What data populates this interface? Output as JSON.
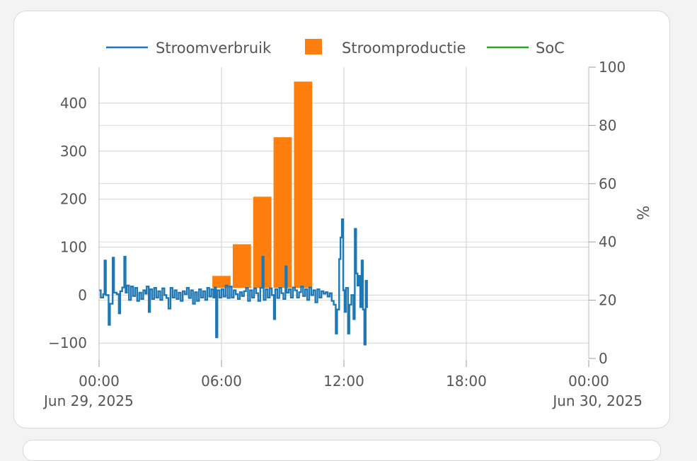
{
  "legend": [
    {
      "name": "Stroomverbruik",
      "color": "#1f77b4",
      "kind": "line"
    },
    {
      "name": "Stroomproductie",
      "color": "#ff7f0e",
      "kind": "bar"
    },
    {
      "name": "SoC",
      "color": "#2ca02c",
      "kind": "line"
    }
  ],
  "chart_data": {
    "type": "bar",
    "x_axis": {
      "range": [
        "2025-06-29 00:00",
        "2025-06-30 00:00"
      ],
      "ticks": [
        {
          "t": 0,
          "label": "00:00",
          "sub": "Jun 29, 2025"
        },
        {
          "t": 6,
          "label": "06:00",
          "sub": ""
        },
        {
          "t": 12,
          "label": "12:00",
          "sub": ""
        },
        {
          "t": 18,
          "label": "18:00",
          "sub": ""
        },
        {
          "t": 24,
          "label": "00:00",
          "sub": "Jun 30, 2025"
        }
      ]
    },
    "y_left": {
      "range": [
        -135,
        475
      ],
      "ticks": [
        {
          "v": -100,
          "label": "−100"
        },
        {
          "v": 0,
          "label": "0"
        },
        {
          "v": 100,
          "label": "100"
        },
        {
          "v": 200,
          "label": "200"
        },
        {
          "v": 300,
          "label": "300"
        },
        {
          "v": 400,
          "label": "400"
        }
      ]
    },
    "y_right": {
      "label": "%",
      "range": [
        0,
        100
      ],
      "ticks": [
        {
          "v": 0,
          "label": "0"
        },
        {
          "v": 20,
          "label": "20"
        },
        {
          "v": 40,
          "label": "40"
        },
        {
          "v": 60,
          "label": "60"
        },
        {
          "v": 80,
          "label": "80"
        },
        {
          "v": 100,
          "label": "100"
        }
      ]
    },
    "grid": true,
    "legend_position": "top",
    "series": [
      {
        "name": "Stroomproductie",
        "type": "bar",
        "points": [
          {
            "start": "2025-06-29 05:30",
            "end": "2025-06-29 06:30",
            "value": 40
          },
          {
            "start": "2025-06-29 06:30",
            "end": "2025-06-29 07:30",
            "value": 106
          },
          {
            "start": "2025-06-29 07:30",
            "end": "2025-06-29 08:30",
            "value": 205
          },
          {
            "start": "2025-06-29 08:30",
            "end": "2025-06-29 09:30",
            "value": 329
          },
          {
            "start": "2025-06-29 09:30",
            "end": "2025-06-29 10:30",
            "value": 445
          }
        ]
      },
      {
        "name": "Stroomverbruik",
        "type": "line",
        "step": true,
        "points": [
          [
            "00:00",
            10
          ],
          [
            "00:05",
            -5
          ],
          [
            "00:12",
            2
          ],
          [
            "00:16",
            72
          ],
          [
            "00:20",
            0
          ],
          [
            "00:28",
            -62
          ],
          [
            "00:32",
            -18
          ],
          [
            "00:40",
            78
          ],
          [
            "00:44",
            5
          ],
          [
            "00:52",
            2
          ],
          [
            "00:58",
            -38
          ],
          [
            "01:02",
            8
          ],
          [
            "01:08",
            16
          ],
          [
            "01:14",
            80
          ],
          [
            "01:18",
            5
          ],
          [
            "01:22",
            20
          ],
          [
            "01:28",
            -10
          ],
          [
            "01:34",
            18
          ],
          [
            "01:40",
            -2
          ],
          [
            "01:46",
            15
          ],
          [
            "01:52",
            -12
          ],
          [
            "01:58",
            5
          ],
          [
            "02:04",
            -8
          ],
          [
            "02:10",
            10
          ],
          [
            "02:16",
            3
          ],
          [
            "02:20",
            18
          ],
          [
            "02:26",
            -35
          ],
          [
            "02:30",
            12
          ],
          [
            "02:36",
            -8
          ],
          [
            "02:42",
            15
          ],
          [
            "02:48",
            -5
          ],
          [
            "02:54",
            8
          ],
          [
            "03:00",
            -10
          ],
          [
            "03:06",
            14
          ],
          [
            "03:12",
            0
          ],
          [
            "03:18",
            -6
          ],
          [
            "03:24",
            -28
          ],
          [
            "03:30",
            15
          ],
          [
            "03:36",
            -5
          ],
          [
            "03:42",
            10
          ],
          [
            "03:48",
            -8
          ],
          [
            "03:54",
            5
          ],
          [
            "04:00",
            -12
          ],
          [
            "04:06",
            8
          ],
          [
            "04:12",
            2
          ],
          [
            "04:18",
            15
          ],
          [
            "04:24",
            -6
          ],
          [
            "04:30",
            10
          ],
          [
            "04:36",
            -18
          ],
          [
            "04:42",
            6
          ],
          [
            "04:48",
            -12
          ],
          [
            "04:54",
            12
          ],
          [
            "05:00",
            -5
          ],
          [
            "05:06",
            8
          ],
          [
            "05:12",
            -10
          ],
          [
            "05:18",
            15
          ],
          [
            "05:24",
            -3
          ],
          [
            "05:30",
            12
          ],
          [
            "05:36",
            -5
          ],
          [
            "05:40",
            16
          ],
          [
            "05:44",
            -88
          ],
          [
            "05:48",
            10
          ],
          [
            "05:54",
            -5
          ],
          [
            "06:00",
            12
          ],
          [
            "06:06",
            -3
          ],
          [
            "06:12",
            20
          ],
          [
            "06:18",
            -6
          ],
          [
            "06:24",
            18
          ],
          [
            "06:30",
            -5
          ],
          [
            "06:36",
            10
          ],
          [
            "06:42",
            2
          ],
          [
            "06:48",
            -8
          ],
          [
            "06:54",
            6
          ],
          [
            "07:00",
            -2
          ],
          [
            "07:06",
            8
          ],
          [
            "07:12",
            15
          ],
          [
            "07:18",
            -12
          ],
          [
            "07:24",
            10
          ],
          [
            "07:30",
            -5
          ],
          [
            "07:36",
            14
          ],
          [
            "07:42",
            4
          ],
          [
            "07:48",
            -12
          ],
          [
            "07:54",
            15
          ],
          [
            "08:00",
            80
          ],
          [
            "08:04",
            -10
          ],
          [
            "08:10",
            12
          ],
          [
            "08:16",
            -5
          ],
          [
            "08:22",
            14
          ],
          [
            "08:28",
            0
          ],
          [
            "08:34",
            -50
          ],
          [
            "08:38",
            12
          ],
          [
            "08:44",
            -6
          ],
          [
            "08:50",
            15
          ],
          [
            "08:56",
            4
          ],
          [
            "09:02",
            -8
          ],
          [
            "09:08",
            60
          ],
          [
            "09:12",
            5
          ],
          [
            "09:18",
            12
          ],
          [
            "09:24",
            -5
          ],
          [
            "09:30",
            16
          ],
          [
            "09:36",
            10
          ],
          [
            "09:42",
            -5
          ],
          [
            "09:48",
            6
          ],
          [
            "09:54",
            18
          ],
          [
            "10:00",
            -2
          ],
          [
            "10:06",
            12
          ],
          [
            "10:12",
            -10
          ],
          [
            "10:18",
            16
          ],
          [
            "10:24",
            0
          ],
          [
            "10:30",
            10
          ],
          [
            "10:36",
            -15
          ],
          [
            "10:42",
            12
          ],
          [
            "10:48",
            -5
          ],
          [
            "10:54",
            8
          ],
          [
            "11:00",
            3
          ],
          [
            "11:06",
            6
          ],
          [
            "11:12",
            -3
          ],
          [
            "11:18",
            4
          ],
          [
            "11:24",
            -12
          ],
          [
            "11:30",
            -20
          ],
          [
            "11:36",
            -80
          ],
          [
            "11:40",
            -30
          ],
          [
            "11:46",
            75
          ],
          [
            "11:50",
            120
          ],
          [
            "11:54",
            158
          ],
          [
            "11:58",
            10
          ],
          [
            "12:02",
            -35
          ],
          [
            "12:06",
            15
          ],
          [
            "12:12",
            -80
          ],
          [
            "12:16",
            -20
          ],
          [
            "12:22",
            0
          ],
          [
            "12:28",
            -50
          ],
          [
            "12:32",
            138
          ],
          [
            "12:36",
            45
          ],
          [
            "12:40",
            20
          ],
          [
            "12:44",
            40
          ],
          [
            "12:48",
            -25
          ],
          [
            "12:52",
            72
          ],
          [
            "12:56",
            -30
          ],
          [
            "13:00",
            -103
          ],
          [
            "13:04",
            30
          ],
          [
            "13:08",
            -25
          ]
        ]
      },
      {
        "name": "SoC",
        "type": "line",
        "points": []
      }
    ]
  }
}
